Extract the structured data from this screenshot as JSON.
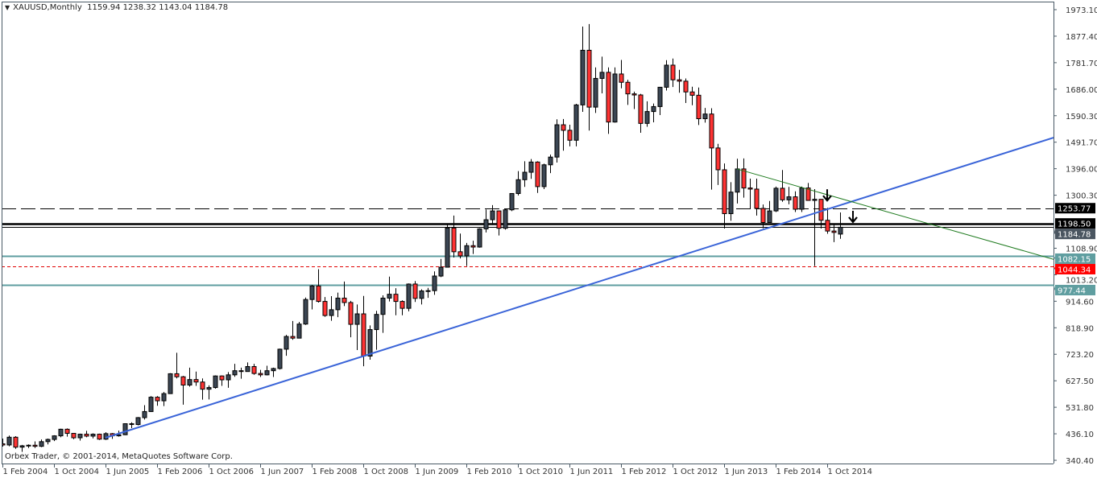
{
  "header": {
    "symbol": "XAUUSD,Monthly",
    "ohlc_readout": "1159.94 1238.32 1143.04 1184.78",
    "collapse_icon": "triangle-down-icon"
  },
  "footer": {
    "copyright": "Orbex Trader, © 2001-2014, MetaQuotes Software Corp."
  },
  "colors": {
    "bull": "#3b4653",
    "bear": "#ff3333",
    "outline": "#000000",
    "trendline_blue": "#3a64d8",
    "trendline_green": "#1e7a1e",
    "support_teal": "#5f9ea0",
    "level_red": "#e00000",
    "axis": "#4a5a66"
  },
  "chart_data": {
    "type": "candlestick",
    "title": "XAUUSD,Monthly",
    "ylim": [
      340.4,
      1973.1
    ],
    "y_ticks": [
      "1973.10",
      "1877.40",
      "1781.70",
      "1686.00",
      "1590.30",
      "1491.70",
      "1396.00",
      "1300.30",
      "1108.90",
      "1013.20",
      "914.60",
      "818.90",
      "723.20",
      "627.50",
      "531.80",
      "436.10",
      "340.40"
    ],
    "x_ticks": [
      {
        "t": "2004-02",
        "label": "1 Feb 2004"
      },
      {
        "t": "2004-10",
        "label": "1 Oct 2004"
      },
      {
        "t": "2005-06",
        "label": "1 Jun 2005"
      },
      {
        "t": "2006-02",
        "label": "1 Feb 2006"
      },
      {
        "t": "2006-10",
        "label": "1 Oct 2006"
      },
      {
        "t": "2007-06",
        "label": "1 Jun 2007"
      },
      {
        "t": "2008-02",
        "label": "1 Feb 2008"
      },
      {
        "t": "2008-10",
        "label": "1 Oct 2008"
      },
      {
        "t": "2009-06",
        "label": "1 Jun 2009"
      },
      {
        "t": "2010-02",
        "label": "1 Feb 2010"
      },
      {
        "t": "2010-10",
        "label": "1 Oct 2010"
      },
      {
        "t": "2011-06",
        "label": "1 Jun 2011"
      },
      {
        "t": "2012-02",
        "label": "1 Feb 2012"
      },
      {
        "t": "2012-10",
        "label": "1 Oct 2012"
      },
      {
        "t": "2013-06",
        "label": "1 Jun 2013"
      },
      {
        "t": "2014-02",
        "label": "1 Feb 2014"
      },
      {
        "t": "2014-10",
        "label": "1 Oct 2014"
      }
    ],
    "candles": [
      [
        "2004-02",
        400,
        419,
        390,
        396
      ],
      [
        "2004-03",
        396,
        430,
        391,
        424
      ],
      [
        "2004-04",
        424,
        428,
        382,
        388
      ],
      [
        "2004-05",
        388,
        396,
        371,
        393
      ],
      [
        "2004-06",
        393,
        398,
        385,
        395
      ],
      [
        "2004-07",
        395,
        409,
        385,
        391
      ],
      [
        "2004-08",
        391,
        416,
        388,
        408
      ],
      [
        "2004-09",
        408,
        419,
        398,
        416
      ],
      [
        "2004-10",
        416,
        431,
        410,
        429
      ],
      [
        "2004-11",
        429,
        455,
        424,
        453
      ],
      [
        "2004-12",
        453,
        456,
        426,
        438
      ],
      [
        "2005-01",
        438,
        439,
        417,
        422
      ],
      [
        "2005-02",
        422,
        437,
        412,
        435
      ],
      [
        "2005-03",
        435,
        447,
        424,
        428
      ],
      [
        "2005-04",
        428,
        438,
        420,
        435
      ],
      [
        "2005-05",
        435,
        437,
        414,
        417
      ],
      [
        "2005-06",
        417,
        442,
        414,
        437
      ],
      [
        "2005-07",
        437,
        439,
        418,
        429
      ],
      [
        "2005-08",
        429,
        448,
        426,
        433
      ],
      [
        "2005-09",
        433,
        474,
        432,
        473
      ],
      [
        "2005-10",
        473,
        478,
        457,
        470
      ],
      [
        "2005-11",
        470,
        497,
        467,
        495
      ],
      [
        "2005-12",
        495,
        540,
        488,
        517
      ],
      [
        "2006-01",
        517,
        573,
        516,
        569
      ],
      [
        "2006-02",
        569,
        573,
        538,
        556
      ],
      [
        "2006-03",
        556,
        588,
        537,
        582
      ],
      [
        "2006-04",
        582,
        656,
        582,
        654
      ],
      [
        "2006-05",
        654,
        730,
        637,
        643
      ],
      [
        "2006-06",
        643,
        646,
        542,
        613
      ],
      [
        "2006-07",
        613,
        676,
        607,
        633
      ],
      [
        "2006-08",
        633,
        662,
        610,
        624
      ],
      [
        "2006-09",
        624,
        637,
        560,
        598
      ],
      [
        "2006-10",
        598,
        612,
        561,
        604
      ],
      [
        "2006-11",
        604,
        648,
        600,
        646
      ],
      [
        "2006-12",
        646,
        648,
        610,
        632
      ],
      [
        "2007-01",
        632,
        660,
        603,
        650
      ],
      [
        "2007-02",
        650,
        690,
        643,
        665
      ],
      [
        "2007-03",
        665,
        676,
        636,
        662
      ],
      [
        "2007-04",
        662,
        695,
        662,
        680
      ],
      [
        "2007-05",
        680,
        690,
        650,
        655
      ],
      [
        "2007-06",
        655,
        668,
        642,
        650
      ],
      [
        "2007-07",
        650,
        683,
        648,
        665
      ],
      [
        "2007-08",
        665,
        676,
        642,
        673
      ],
      [
        "2007-09",
        673,
        745,
        669,
        743
      ],
      [
        "2007-10",
        743,
        795,
        719,
        789
      ],
      [
        "2007-11",
        789,
        845,
        777,
        783
      ],
      [
        "2007-12",
        783,
        842,
        782,
        834
      ],
      [
        "2008-01",
        834,
        930,
        831,
        923
      ],
      [
        "2008-02",
        923,
        976,
        887,
        972
      ],
      [
        "2008-03",
        972,
        1033,
        912,
        916
      ],
      [
        "2008-04",
        916,
        932,
        860,
        865
      ],
      [
        "2008-05",
        865,
        935,
        846,
        886
      ],
      [
        "2008-06",
        886,
        948,
        859,
        928
      ],
      [
        "2008-07",
        928,
        988,
        899,
        912
      ],
      [
        "2008-08",
        912,
        918,
        786,
        833
      ],
      [
        "2008-09",
        833,
        905,
        740,
        871
      ],
      [
        "2008-10",
        871,
        936,
        681,
        718
      ],
      [
        "2008-11",
        718,
        829,
        705,
        814
      ],
      [
        "2008-12",
        814,
        882,
        741,
        869
      ],
      [
        "2009-01",
        869,
        938,
        802,
        928
      ],
      [
        "2009-02",
        928,
        1006,
        916,
        942
      ],
      [
        "2009-03",
        942,
        964,
        866,
        916
      ],
      [
        "2009-04",
        916,
        920,
        866,
        891
      ],
      [
        "2009-05",
        891,
        981,
        880,
        979
      ],
      [
        "2009-06",
        979,
        990,
        914,
        927
      ],
      [
        "2009-07",
        927,
        960,
        905,
        954
      ],
      [
        "2009-08",
        954,
        965,
        929,
        955
      ],
      [
        "2009-09",
        955,
        1025,
        940,
        1008
      ],
      [
        "2009-10",
        1008,
        1070,
        1004,
        1040
      ],
      [
        "2009-11",
        1040,
        1195,
        1040,
        1182
      ],
      [
        "2009-12",
        1182,
        1227,
        1075,
        1096
      ],
      [
        "2010-01",
        1096,
        1162,
        1072,
        1081
      ],
      [
        "2010-02",
        1081,
        1128,
        1044,
        1118
      ],
      [
        "2010-03",
        1118,
        1136,
        1088,
        1113
      ],
      [
        "2010-04",
        1113,
        1181,
        1111,
        1179
      ],
      [
        "2010-05",
        1179,
        1249,
        1166,
        1212
      ],
      [
        "2010-06",
        1212,
        1265,
        1193,
        1244
      ],
      [
        "2010-07",
        1244,
        1245,
        1155,
        1181
      ],
      [
        "2010-08",
        1181,
        1251,
        1176,
        1248
      ],
      [
        "2010-09",
        1248,
        1308,
        1243,
        1307
      ],
      [
        "2010-10",
        1307,
        1388,
        1300,
        1357
      ],
      [
        "2010-11",
        1357,
        1424,
        1331,
        1384
      ],
      [
        "2010-12",
        1384,
        1432,
        1360,
        1421
      ],
      [
        "2011-01",
        1421,
        1424,
        1309,
        1332
      ],
      [
        "2011-02",
        1332,
        1415,
        1323,
        1411
      ],
      [
        "2011-03",
        1411,
        1448,
        1381,
        1439
      ],
      [
        "2011-04",
        1439,
        1576,
        1419,
        1556
      ],
      [
        "2011-05",
        1556,
        1577,
        1462,
        1536
      ],
      [
        "2011-06",
        1536,
        1556,
        1478,
        1500
      ],
      [
        "2011-07",
        1500,
        1632,
        1478,
        1628
      ],
      [
        "2011-08",
        1628,
        1912,
        1603,
        1826
      ],
      [
        "2011-09",
        1826,
        1921,
        1535,
        1620
      ],
      [
        "2011-10",
        1620,
        1764,
        1599,
        1724
      ],
      [
        "2011-11",
        1724,
        1803,
        1670,
        1746
      ],
      [
        "2011-12",
        1746,
        1764,
        1523,
        1566
      ],
      [
        "2012-01",
        1566,
        1764,
        1564,
        1740
      ],
      [
        "2012-02",
        1740,
        1791,
        1688,
        1710
      ],
      [
        "2012-03",
        1710,
        1719,
        1628,
        1668
      ],
      [
        "2012-04",
        1668,
        1676,
        1613,
        1664
      ],
      [
        "2012-05",
        1664,
        1668,
        1527,
        1561
      ],
      [
        "2012-06",
        1561,
        1641,
        1549,
        1604
      ],
      [
        "2012-07",
        1604,
        1633,
        1565,
        1622
      ],
      [
        "2012-08",
        1622,
        1692,
        1591,
        1692
      ],
      [
        "2012-09",
        1692,
        1790,
        1680,
        1772
      ],
      [
        "2012-10",
        1772,
        1796,
        1693,
        1719
      ],
      [
        "2012-11",
        1719,
        1755,
        1672,
        1714
      ],
      [
        "2012-12",
        1714,
        1724,
        1635,
        1675
      ],
      [
        "2013-01",
        1675,
        1694,
        1627,
        1663
      ],
      [
        "2013-02",
        1663,
        1691,
        1555,
        1578
      ],
      [
        "2013-03",
        1578,
        1617,
        1564,
        1595
      ],
      [
        "2013-04",
        1595,
        1616,
        1321,
        1472
      ],
      [
        "2013-05",
        1472,
        1487,
        1338,
        1393
      ],
      [
        "2013-06",
        1393,
        1416,
        1180,
        1234
      ],
      [
        "2013-07",
        1234,
        1348,
        1208,
        1312
      ],
      [
        "2013-08",
        1312,
        1433,
        1271,
        1396
      ],
      [
        "2013-09",
        1396,
        1434,
        1292,
        1327
      ],
      [
        "2013-10",
        1327,
        1361,
        1251,
        1323
      ],
      [
        "2013-11",
        1323,
        1361,
        1227,
        1253
      ],
      [
        "2013-12",
        1253,
        1267,
        1181,
        1202
      ],
      [
        "2014-01",
        1202,
        1280,
        1202,
        1244
      ],
      [
        "2014-02",
        1244,
        1332,
        1240,
        1326
      ],
      [
        "2014-03",
        1326,
        1392,
        1277,
        1284
      ],
      [
        "2014-04",
        1284,
        1331,
        1268,
        1295
      ],
      [
        "2014-05",
        1295,
        1315,
        1240,
        1250
      ],
      [
        "2014-06",
        1250,
        1332,
        1240,
        1327
      ],
      [
        "2014-07",
        1327,
        1345,
        1281,
        1282
      ],
      [
        "2014-08",
        1282,
        1323,
        1044,
        1286
      ],
      [
        "2014-09",
        1286,
        1287,
        1180,
        1210
      ],
      [
        "2014-10",
        1210,
        1255,
        1161,
        1171
      ],
      [
        "2014-11",
        1171,
        1197,
        1131,
        1166
      ],
      [
        "2014-12",
        1159.94,
        1238.32,
        1143.04,
        1184.78
      ]
    ],
    "horizontal_levels": [
      {
        "price": 1253.77,
        "label": "1253.77",
        "style": "dashed",
        "color": "#000000",
        "label_bg": "#000000"
      },
      {
        "price": 1198.5,
        "label": "1198.50",
        "style": "thick",
        "color": "#000000",
        "label_bg": "#000000"
      },
      {
        "price": 1184.78,
        "label": "1184.78",
        "style": "solid",
        "color": "#000000",
        "label_bg": "#4a5560"
      },
      {
        "price": 1082.15,
        "label": "1082.15",
        "style": "teal",
        "color": "#5f9ea0",
        "label_bg": "#5f9ea0"
      },
      {
        "price": 1044.34,
        "label": "1044.34",
        "style": "dotted",
        "color": "#e00000",
        "label_bg": "#ff0000"
      },
      {
        "price": 977.44,
        "label": "977.44",
        "style": "teal",
        "color": "#5f9ea0",
        "label_bg": "#5f9ea0"
      }
    ],
    "trendlines": [
      {
        "name": "",
        "color": "#3a64d8",
        "from": [
          "2005-06",
          422
        ],
        "to": [
          "2014-08",
          1235
        ],
        "ray": true
      },
      {
        "name": "",
        "color": "#1e7a1e",
        "from": [
          "2013-08",
          1396
        ],
        "to": [
          "2014-08",
          1316
        ],
        "ray": true
      }
    ],
    "arrows": [
      {
        "t": "2014-10",
        "price": 1299,
        "icon": "down-arrow-icon"
      },
      {
        "t": "2015-02",
        "price": 1221,
        "icon": "down-arrow-icon"
      }
    ]
  }
}
